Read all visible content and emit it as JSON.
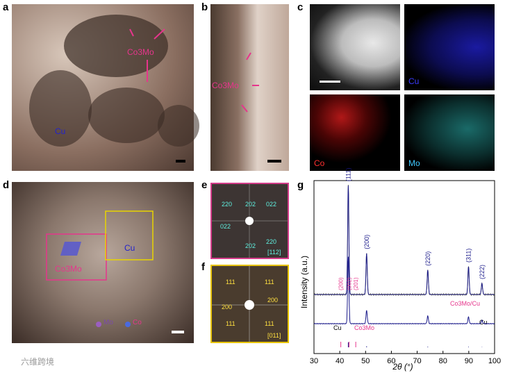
{
  "panels": {
    "a": {
      "letter": "a",
      "label_co3mo": "Co3Mo",
      "label_cu": "Cu"
    },
    "b": {
      "letter": "b",
      "label_co3mo": "Co3Mo"
    },
    "c": {
      "letter": "c",
      "map_cu": "Cu",
      "map_co": "Co",
      "map_mo": "Mo"
    },
    "d": {
      "letter": "d",
      "label_co3mo": "Co3Mo",
      "label_cu": "Cu",
      "legend_mo": "Mo",
      "legend_co": "Co"
    },
    "e": {
      "letter": "e",
      "spots": [
        "220",
        "202",
        "022",
        "022",
        "202",
        "220"
      ],
      "zone": "[112]"
    },
    "f": {
      "letter": "f",
      "spots": [
        "111",
        "111",
        "200",
        "200",
        "111",
        "111"
      ],
      "zone": "[011]"
    },
    "g": {
      "letter": "g"
    }
  },
  "chart_data": {
    "type": "line",
    "xlabel": "2θ (°)",
    "ylabel": "Intensity (a.u.)",
    "xlim": [
      30,
      100
    ],
    "xticks": [
      30,
      40,
      50,
      60,
      70,
      80,
      90,
      100
    ],
    "series": [
      {
        "name": "Co3Mo/Cu",
        "peaks": [
          {
            "x": 43.3,
            "h": 0.98,
            "label": "(111)"
          },
          {
            "x": 50.4,
            "h": 0.37,
            "label": "(200)"
          },
          {
            "x": 74.1,
            "h": 0.22,
            "label": "(220)"
          },
          {
            "x": 89.9,
            "h": 0.25,
            "label": "(311)"
          },
          {
            "x": 95.1,
            "h": 0.1,
            "label": "(222)"
          }
        ]
      },
      {
        "name": "Cu",
        "peaks": [
          {
            "x": 43.3,
            "h": 0.6
          },
          {
            "x": 50.4,
            "h": 0.12
          },
          {
            "x": 74.1,
            "h": 0.07
          },
          {
            "x": 89.9,
            "h": 0.06
          },
          {
            "x": 95.1,
            "h": 0.03
          }
        ]
      }
    ],
    "co3mo_peaks": [
      {
        "x": 40.4,
        "label": "(200)"
      },
      {
        "x": 43.6,
        "label": "(002)"
      },
      {
        "x": 46.2,
        "label": "(201)"
      }
    ],
    "reference_label_cu": "Cu",
    "reference_label_co3mo": "Co3Mo",
    "trace_label_top": "Co3Mo/Cu",
    "trace_label_bottom": "Cu"
  },
  "watermark": "六维跨境"
}
